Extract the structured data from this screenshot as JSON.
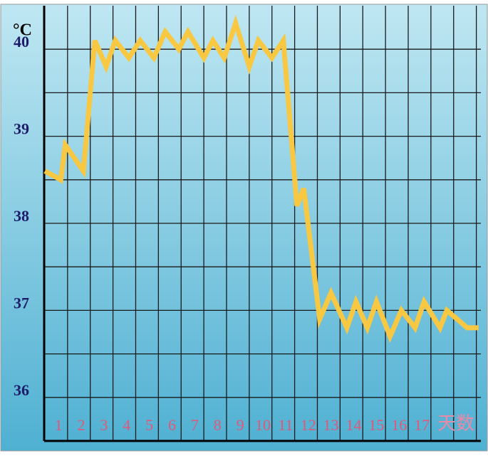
{
  "chart_data": {
    "type": "line",
    "y_unit": "°C",
    "x_label": "天数",
    "x": [
      0.4,
      1.1,
      1.3,
      2.1,
      2.6,
      3.1,
      3.5,
      4.1,
      4.6,
      5.2,
      5.7,
      6.3,
      6.7,
      7.4,
      7.8,
      8.3,
      8.8,
      9.4,
      9.8,
      10.4,
      10.9,
      11.5,
      11.8,
      12.5,
      13.0,
      13.7,
      14.1,
      14.6,
      15.0,
      15.6,
      16.1,
      16.7,
      17.1,
      17.8,
      18.1,
      19.0,
      19.5
    ],
    "values": [
      38.6,
      38.5,
      38.9,
      38.6,
      40.1,
      39.8,
      40.1,
      39.9,
      40.1,
      39.9,
      40.2,
      40.0,
      40.2,
      39.9,
      40.1,
      39.9,
      40.3,
      39.8,
      40.1,
      39.9,
      40.1,
      38.2,
      38.4,
      36.9,
      37.2,
      36.8,
      37.1,
      36.8,
      37.1,
      36.7,
      37.0,
      36.8,
      37.1,
      36.8,
      37.0,
      36.8,
      36.8
    ],
    "color": "#f9c842",
    "xlim": [
      0.37,
      19.6
    ],
    "ylim": [
      35.5,
      40.5
    ],
    "xticks": [
      1,
      2,
      3,
      4,
      5,
      6,
      7,
      8,
      9,
      10,
      11,
      12,
      13,
      14,
      15,
      16,
      17
    ],
    "yticks": [
      36,
      37,
      38,
      39,
      40
    ],
    "xgrid": [
      1.4,
      2.4,
      3.4,
      4.4,
      5.4,
      6.4,
      7.4,
      8.4,
      9.4,
      10.4,
      11.4,
      12.4,
      13.4,
      14.4,
      15.4,
      16.4,
      17.4,
      18.4,
      19.4
    ],
    "ygrid": [
      36,
      36.5,
      37,
      37.5,
      38,
      38.5,
      39,
      39.5,
      40
    ],
    "grid": true
  }
}
